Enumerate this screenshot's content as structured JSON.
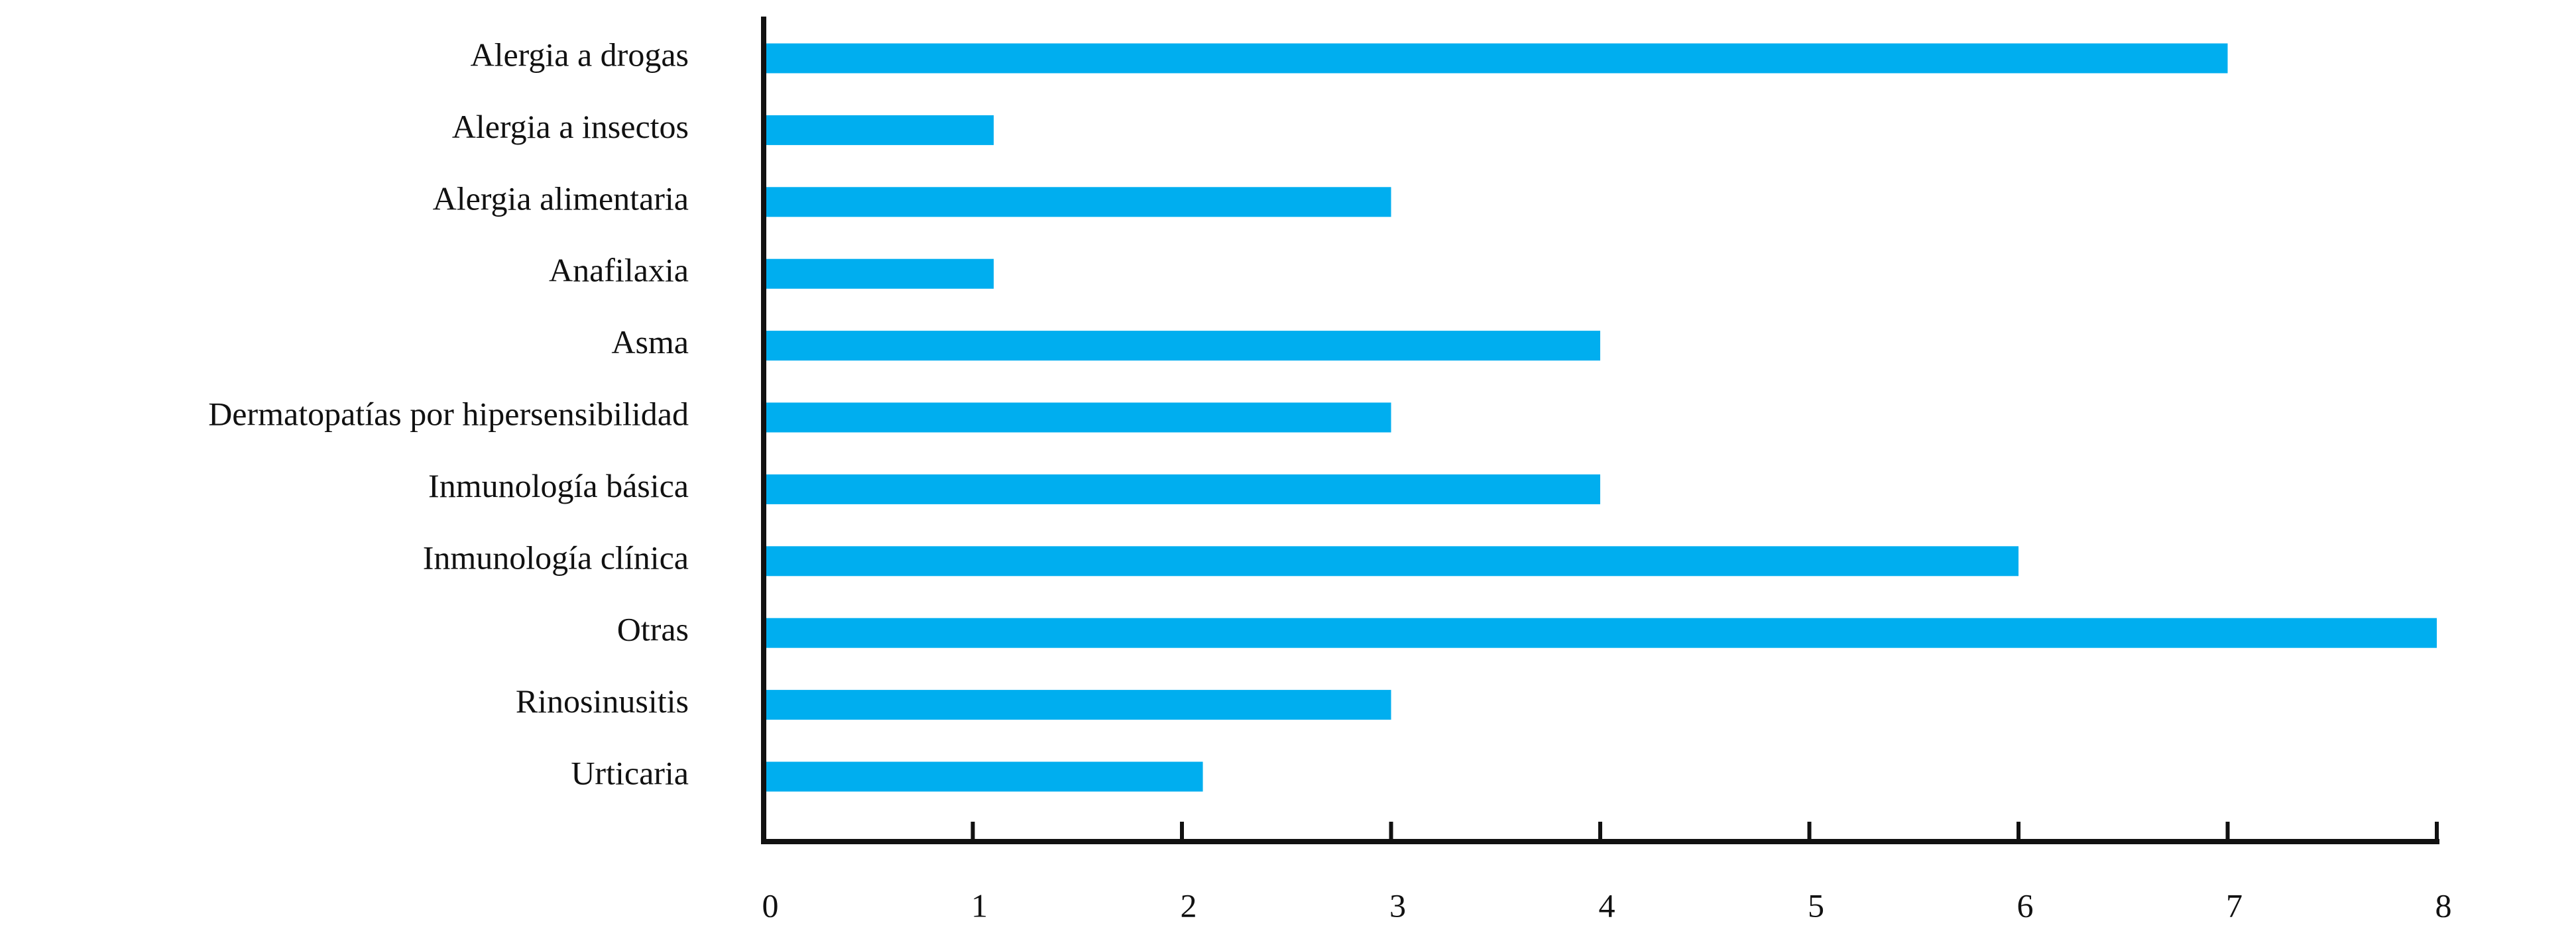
{
  "chart_data": {
    "type": "barh",
    "categories": [
      "Alergia a drogas",
      "Alergia a insectos",
      "Alergia alimentaria",
      "Anafilaxia",
      "Asma",
      "Dermatopatías por hipersensibilidad",
      "Inmunología básica",
      "Inmunología clínica",
      "Otras",
      "Rinosinusitis",
      "Urticaria"
    ],
    "values": [
      7,
      1.1,
      3,
      1.1,
      4,
      3,
      4,
      6,
      8,
      3,
      2.1
    ],
    "color": "#00aeef",
    "xlim": [
      0,
      8
    ],
    "xticks": [
      0,
      1,
      2,
      3,
      4,
      5,
      6,
      7,
      8
    ],
    "grid": false
  }
}
